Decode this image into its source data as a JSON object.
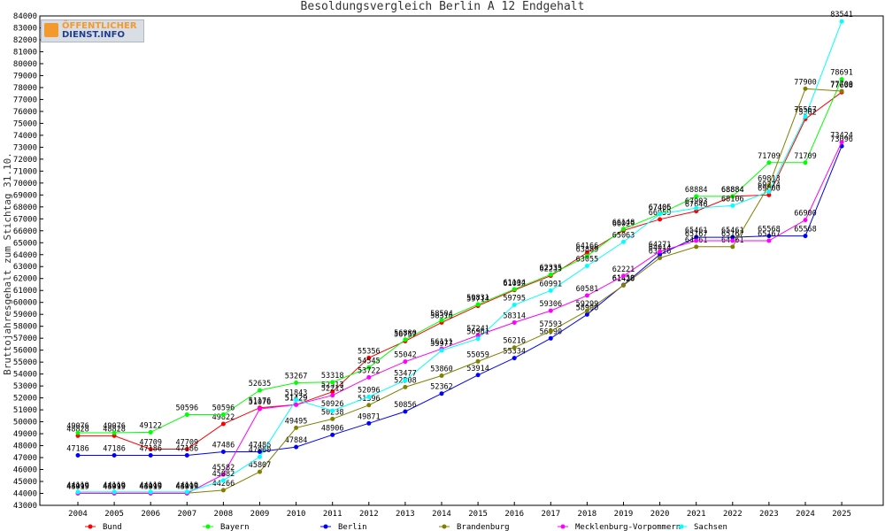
{
  "logo": {
    "line1": "ÖFFENTLICHER",
    "line2": "DIENST.INFO"
  },
  "chart_data": {
    "type": "line",
    "title": "Besoldungsvergleich Berlin A 12 Endgehalt",
    "xlabel": "",
    "ylabel": "Bruttojahresgehalt zum Stichtag 31.10.",
    "ylim": [
      43000,
      84000
    ],
    "yticks": [
      43000,
      44000,
      45000,
      46000,
      47000,
      48000,
      49000,
      50000,
      51000,
      52000,
      53000,
      54000,
      55000,
      56000,
      57000,
      58000,
      59000,
      60000,
      61000,
      62000,
      63000,
      64000,
      65000,
      66000,
      67000,
      68000,
      69000,
      70000,
      71000,
      72000,
      73000,
      74000,
      75000,
      76000,
      77000,
      78000,
      79000,
      80000,
      81000,
      82000,
      83000,
      84000
    ],
    "grid": false,
    "legend_position": "bottom",
    "categories": [
      "2004",
      "2005",
      "2006",
      "2007",
      "2008",
      "2009",
      "2010",
      "2011",
      "2012",
      "2013",
      "2014",
      "2015",
      "2016",
      "2017",
      "2018",
      "2019",
      "2020",
      "2021",
      "2022",
      "2023",
      "2024",
      "2025"
    ],
    "series": [
      {
        "name": "Bund",
        "color": "#ff0000",
        "values": [
          48828,
          48828,
          47709,
          47709,
          49822,
          51176,
          51429,
          52513,
          55356,
          56757,
          58316,
          59714,
          61032,
          62235,
          64166,
          66029,
          66959,
          67646,
          68884,
          69000,
          75362,
          77608
        ]
      },
      {
        "name": "Bayern",
        "color": "#00ff00",
        "values": [
          49076,
          49076,
          49122,
          50596,
          50596,
          52635,
          53267,
          53318,
          54545,
          56880,
          58504,
          59831,
          61104,
          62335,
          63889,
          66148,
          67405,
          68884,
          68884,
          71709,
          71709,
          78691
        ]
      },
      {
        "name": "Berlin",
        "color": "#0000ff",
        "values": [
          47186,
          47186,
          47186,
          47186,
          47486,
          47486,
          47884,
          48906,
          49871,
          50856,
          52362,
          53914,
          55334,
          56990,
          58990,
          61459,
          64014,
          65461,
          65461,
          65568,
          65568,
          73096
        ]
      },
      {
        "name": "Brandenburg",
        "color": "#808000",
        "values": [
          44019,
          44019,
          44019,
          44019,
          44266,
          45807,
          49495,
          50238,
          51396,
          52908,
          53860,
          55059,
          56216,
          57593,
          59299,
          61426,
          63726,
          64661,
          64661,
          69813,
          77900,
          77700
        ]
      },
      {
        "name": "Mecklenburg-Vorpommern",
        "color": "#ff00ff",
        "values": [
          43999,
          43999,
          43999,
          43999,
          45582,
          51076,
          51429,
          52213,
          53722,
          55042,
          56111,
          57241,
          58314,
          59306,
          60581,
          62221,
          64271,
          65167,
          65167,
          65167,
          66900,
          73424
        ]
      },
      {
        "name": "Sachsen",
        "color": "#00ffff",
        "values": [
          44119,
          44119,
          44119,
          44119,
          45082,
          47060,
          51843,
          50926,
          52096,
          53477,
          55977,
          56961,
          59795,
          60991,
          63055,
          65063,
          67406,
          67903,
          68106,
          69274,
          75567,
          83541
        ]
      }
    ]
  }
}
